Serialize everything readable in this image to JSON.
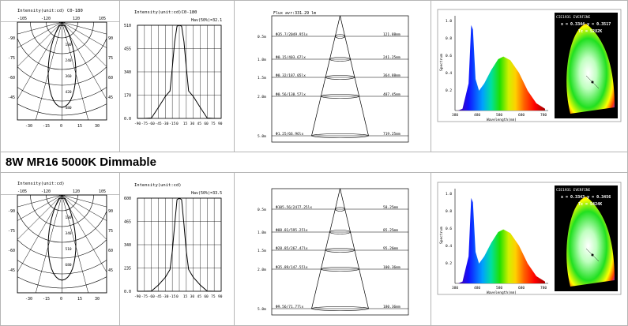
{
  "section_label": "8W MR16 5000K Dimmable",
  "polar": [
    {
      "title": "Intensity(unit:cd)  C0-180",
      "left_top": "-105",
      "center_left_top": "-120",
      "center_right_top": "120",
      "right_top": "105",
      "left_side": [
        "-90",
        "-75",
        "-60",
        "-45"
      ],
      "right_side": [
        "90",
        "75",
        "60",
        "45"
      ],
      "bottom": [
        "-30",
        "-15",
        "0",
        "15",
        "30"
      ],
      "radial": [
        "180",
        "240",
        "360",
        "420",
        "480"
      ]
    },
    {
      "title": "Intensity(unit:cd)",
      "left_top": "-105",
      "center_left_top": "-120",
      "center_right_top": "120",
      "right_top": "105",
      "left_side": [
        "-90",
        "-75",
        "-60",
        "-45"
      ],
      "right_side": [
        "90",
        "75",
        "60",
        "45"
      ],
      "bottom": [
        "-30",
        "-15",
        "0",
        "15",
        "30"
      ],
      "radial": [
        "180",
        "340",
        "510",
        "680"
      ]
    }
  ],
  "chart_data": [
    {
      "type": "line",
      "title": "Intensity(unit:cd)C0-180",
      "annotation": "Hav(50%)=32.1",
      "x": [
        -90,
        -75,
        -60,
        -45,
        -30,
        -20,
        -15,
        -10,
        -5,
        0,
        5,
        10,
        15,
        20,
        30,
        45,
        60,
        75,
        90
      ],
      "values": [
        0,
        0,
        2,
        60,
        120,
        150,
        280,
        420,
        505,
        510,
        505,
        420,
        280,
        150,
        120,
        60,
        2,
        0,
        0
      ],
      "ylim": [
        0,
        510
      ],
      "yticks": [
        "510",
        "455",
        "340",
        "170",
        "0.0"
      ],
      "xticks": [
        "-90",
        "-75",
        "-60",
        "-45",
        "-30",
        "-15",
        "0",
        "15",
        "30",
        "45",
        "60",
        "75",
        "90"
      ]
    },
    {
      "type": "line",
      "title": "Intensity(unit:cd)",
      "annotation": "Hav(50%)=33.5",
      "x": [
        -90,
        -75,
        -60,
        -45,
        -30,
        -20,
        -15,
        -10,
        -5,
        0,
        5,
        10,
        15,
        20,
        30,
        45,
        60,
        75,
        90
      ],
      "values": [
        0,
        0,
        1,
        40,
        90,
        140,
        260,
        430,
        590,
        600,
        590,
        430,
        260,
        140,
        90,
        40,
        1,
        0,
        0
      ],
      "ylim": [
        0,
        600
      ],
      "yticks": [
        "600",
        "465",
        "340",
        "235",
        "0.0"
      ],
      "xticks": [
        "-90",
        "-75",
        "-60",
        "-45",
        "-30",
        "-15",
        "0",
        "15",
        "30",
        "45",
        "60",
        "75",
        "90"
      ]
    }
  ],
  "cone": [
    {
      "header": "Flux avr:331.29 lm",
      "rows": [
        {
          "d": "0.5m",
          "left": "Φ35.7/2049.95lx",
          "right": "121.88mm"
        },
        {
          "d": "1.0m",
          "left": "Φ0.15/403.67lx",
          "right": "241.25mm"
        },
        {
          "d": "1.5m",
          "left": "Φ0.32/187.05lx",
          "right": "364.88mm"
        },
        {
          "d": "2.0m",
          "left": "Φ0.56/130.57lx",
          "right": "487.45mm"
        },
        {
          "d": "5.0m",
          "left": "Φ1.25/66.96lx",
          "right": "719.25mm"
        }
      ]
    },
    {
      "header": "",
      "rows": [
        {
          "d": "0.5m",
          "left": "Φ105.56/2477.25lx",
          "right": "58.25mm"
        },
        {
          "d": "1.0m",
          "left": "Φ88.81/595.25lx",
          "right": "85.25mm"
        },
        {
          "d": "1.5m",
          "left": "Φ28.85/267.47lx",
          "right": "95.26mm"
        },
        {
          "d": "2.0m",
          "left": "Φ35.89/147.55lx",
          "right": "100.36mm"
        },
        {
          "d": "5.0m",
          "left": "Φ9.56/71.77lx",
          "right": "180.36mm"
        }
      ]
    }
  ],
  "spectrum": [
    {
      "cie_header": "CIE1931 EVERFINE",
      "xy": "x = 0.3344   y = 0.3517",
      "tc": "Tc = 5282K",
      "xlabel": "Wavelength(nm)",
      "ylabel": "Spectrum",
      "yticks": [
        "1.0",
        "0.8",
        "0.6",
        "0.4",
        "0.2"
      ],
      "xticks": [
        "380",
        "480",
        "580",
        "680",
        "780"
      ]
    },
    {
      "cie_header": "CIE1931 EVERFINE",
      "xy": "x = 0.3343   y = 0.3456",
      "tc": "Tc = 5424K",
      "xlabel": "Wavelength(nm)",
      "ylabel": "Spectrum",
      "yticks": [
        "1.0",
        "0.8",
        "0.6",
        "0.4",
        "0.2"
      ],
      "xticks": [
        "380",
        "480",
        "580",
        "680",
        "780"
      ]
    }
  ],
  "colors": {
    "line": "#000000",
    "grid": "#000000",
    "cell_border": "#b5b5b5",
    "cie_bg": "#000000"
  }
}
